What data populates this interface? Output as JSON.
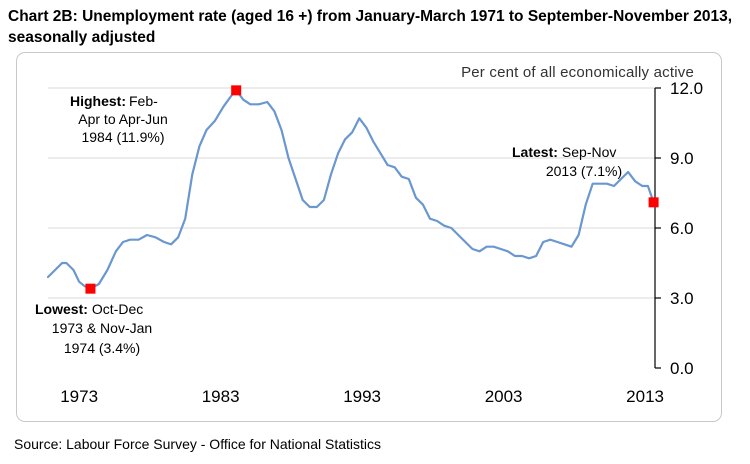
{
  "title": "Chart 2B: Unemployment rate (aged 16 +) from January-March 1971 to September-November 2013, seasonally adjusted",
  "source": "Source: Labour Force Survey - Office for National Statistics",
  "colors": {
    "line": "#6a97cf",
    "marker": "#ff0000",
    "grid": "#d9d9d9",
    "axis": "#000000"
  },
  "chart_data": {
    "type": "line",
    "title": "Unemployment rate (aged 16 +) from January-March 1971 to September-November 2013, seasonally adjusted",
    "ylabel": "Per cent of all economically active",
    "xlabel": "",
    "ylim": [
      0,
      12
    ],
    "xlim": [
      1971.0,
      2013.9
    ],
    "y_ticks": [
      {
        "value": 0,
        "label": "0.0"
      },
      {
        "value": 3,
        "label": "3.0"
      },
      {
        "value": 6,
        "label": "6.0"
      },
      {
        "value": 9,
        "label": "9.0"
      },
      {
        "value": 12,
        "label": "12.0"
      }
    ],
    "x_ticks": [
      {
        "value": 1973.2,
        "label": "1973"
      },
      {
        "value": 1983.2,
        "label": "1983"
      },
      {
        "value": 1993.2,
        "label": "1993"
      },
      {
        "value": 2003.2,
        "label": "2003"
      },
      {
        "value": 2013.2,
        "label": "2013"
      }
    ],
    "grid": true,
    "series": [
      {
        "name": "Unemployment rate",
        "x": [
          1971.0,
          1971.5,
          1972.0,
          1972.3,
          1972.8,
          1973.2,
          1973.6,
          1974.0,
          1974.6,
          1975.2,
          1975.8,
          1976.3,
          1976.8,
          1977.4,
          1978.0,
          1978.6,
          1979.2,
          1979.7,
          1980.2,
          1980.7,
          1981.2,
          1981.7,
          1982.2,
          1982.8,
          1983.4,
          1984.0,
          1984.3,
          1984.8,
          1985.3,
          1985.9,
          1986.5,
          1987.0,
          1987.5,
          1988.0,
          1988.5,
          1989.0,
          1989.5,
          1990.0,
          1990.5,
          1991.0,
          1991.5,
          1992.0,
          1992.5,
          1993.0,
          1993.5,
          1994.0,
          1994.5,
          1995.0,
          1995.5,
          1996.0,
          1996.5,
          1997.0,
          1997.5,
          1998.0,
          1998.5,
          1999.0,
          1999.5,
          2000.0,
          2000.5,
          2001.0,
          2001.5,
          2002.0,
          2002.5,
          2003.0,
          2003.5,
          2004.0,
          2004.5,
          2005.0,
          2005.5,
          2006.0,
          2006.5,
          2007.0,
          2007.5,
          2008.0,
          2008.5,
          2009.0,
          2009.5,
          2010.0,
          2010.5,
          2011.0,
          2011.5,
          2012.0,
          2012.5,
          2013.0,
          2013.4,
          2013.8
        ],
        "values": [
          3.9,
          4.2,
          4.5,
          4.5,
          4.2,
          3.7,
          3.5,
          3.4,
          3.6,
          4.2,
          5.0,
          5.4,
          5.5,
          5.5,
          5.7,
          5.6,
          5.4,
          5.3,
          5.6,
          6.4,
          8.3,
          9.5,
          10.2,
          10.6,
          11.2,
          11.7,
          11.9,
          11.5,
          11.3,
          11.3,
          11.4,
          11.0,
          10.2,
          9.0,
          8.1,
          7.2,
          6.9,
          6.9,
          7.2,
          8.3,
          9.2,
          9.8,
          10.1,
          10.7,
          10.3,
          9.7,
          9.2,
          8.7,
          8.6,
          8.2,
          8.1,
          7.3,
          7.0,
          6.4,
          6.3,
          6.1,
          6.0,
          5.7,
          5.4,
          5.1,
          5.0,
          5.2,
          5.2,
          5.1,
          5.0,
          4.8,
          4.8,
          4.7,
          4.8,
          5.4,
          5.5,
          5.4,
          5.3,
          5.2,
          5.7,
          7.0,
          7.9,
          7.9,
          7.9,
          7.8,
          8.1,
          8.4,
          8.0,
          7.8,
          7.8,
          7.1
        ]
      }
    ],
    "annotations": [
      {
        "name": "lowest",
        "x": 1974.0,
        "y": 3.4,
        "bold": "Lowest:",
        "rest": "Oct-Dec",
        "line2": "1973 & Nov-Jan",
        "line3": "1974 (3.4%)"
      },
      {
        "name": "highest",
        "x": 1984.3,
        "y": 11.9,
        "bold": "Highest:",
        "rest": "Feb-",
        "line2": "Apr to Apr-Jun",
        "line3": "1984 (11.9%)"
      },
      {
        "name": "latest",
        "x": 2013.8,
        "y": 7.1,
        "bold": "Latest:",
        "rest": "Sep-Nov",
        "line2": "2013 (7.1%)",
        "line3": ""
      }
    ]
  }
}
